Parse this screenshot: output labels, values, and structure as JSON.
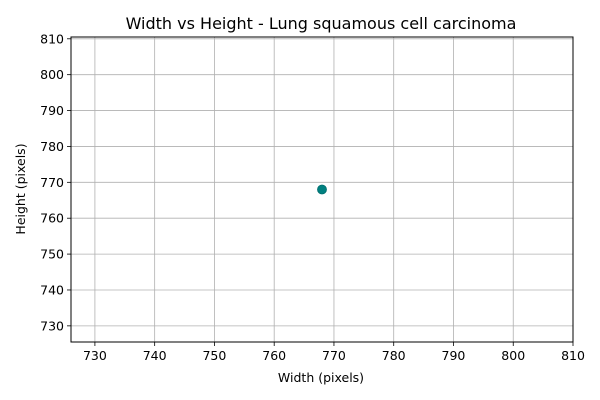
{
  "chart_data": {
    "type": "scatter",
    "title": "Width vs Height - Lung squamous cell carcinoma",
    "xlabel": "Width (pixels)",
    "ylabel": "Height (pixels)",
    "xlim": [
      726,
      810
    ],
    "ylim": [
      725.5,
      810.5
    ],
    "xticks": [
      730,
      740,
      750,
      760,
      770,
      780,
      790,
      800,
      810
    ],
    "yticks": [
      730,
      740,
      750,
      760,
      770,
      780,
      790,
      800,
      810
    ],
    "grid": true,
    "points": [
      {
        "x": 768,
        "y": 768
      }
    ],
    "colors": {
      "point": "#008080",
      "grid": "#b0b0b0",
      "axis": "#000000"
    }
  }
}
